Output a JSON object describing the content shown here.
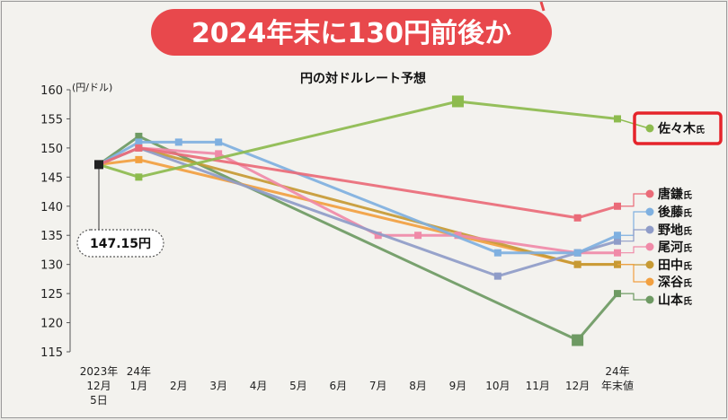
{
  "banner": {
    "text": "2024年末に130円前後か"
  },
  "chart_data": {
    "type": "line",
    "title": "円の対ドルレート予想",
    "ylabel": "(円/ドル)",
    "ylim": [
      115,
      160
    ],
    "yticks": [
      115,
      120,
      125,
      130,
      135,
      140,
      145,
      150,
      155,
      160
    ],
    "categories": [
      [
        "2023年",
        "12月",
        "5日"
      ],
      [
        "24年",
        "1月"
      ],
      [
        "2月"
      ],
      [
        "3月"
      ],
      [
        "4月"
      ],
      [
        "5月"
      ],
      [
        "6月"
      ],
      [
        "7月"
      ],
      [
        "8月"
      ],
      [
        "9月"
      ],
      [
        "10月"
      ],
      [
        "11月"
      ],
      [
        "12月"
      ],
      [
        "24年",
        "年末値"
      ]
    ],
    "start_value": 147.15,
    "start_label": "147.15円",
    "grid": false,
    "legend_position": "right",
    "series": [
      {
        "name": "佐々木",
        "suffix": "氏",
        "color": "#8dbb4e",
        "highlight": true,
        "points": [
          [
            0,
            147.15
          ],
          [
            1,
            145
          ],
          [
            9,
            158
          ],
          [
            13,
            155
          ]
        ]
      },
      {
        "name": "唐鎌",
        "suffix": "氏",
        "color": "#ea6b78",
        "points": [
          [
            0,
            147.15
          ],
          [
            1,
            150
          ],
          [
            12,
            138
          ],
          [
            13,
            140
          ]
        ]
      },
      {
        "name": "後藤",
        "suffix": "氏",
        "color": "#7fb0e0",
        "points": [
          [
            0,
            147.15
          ],
          [
            1,
            151
          ],
          [
            2,
            151
          ],
          [
            3,
            151
          ],
          [
            10,
            132
          ],
          [
            12,
            132
          ],
          [
            13,
            135
          ]
        ]
      },
      {
        "name": "野地",
        "suffix": "氏",
        "color": "#8f9cc8",
        "points": [
          [
            0,
            147.15
          ],
          [
            1,
            150
          ],
          [
            10,
            128
          ],
          [
            12,
            132
          ],
          [
            13,
            134
          ]
        ]
      },
      {
        "name": "尾河",
        "suffix": "氏",
        "color": "#f08aa8",
        "points": [
          [
            0,
            147.15
          ],
          [
            1,
            150
          ],
          [
            3,
            149
          ],
          [
            7,
            135
          ],
          [
            8,
            135
          ],
          [
            9,
            135
          ],
          [
            12,
            132
          ],
          [
            13,
            132
          ]
        ]
      },
      {
        "name": "田中",
        "suffix": "氏",
        "color": "#c79a34",
        "points": [
          [
            0,
            147.15
          ],
          [
            1,
            150
          ],
          [
            12,
            130
          ],
          [
            13,
            130
          ]
        ]
      },
      {
        "name": "深谷",
        "suffix": "氏",
        "color": "#f2a040",
        "points": [
          [
            0,
            147.15
          ],
          [
            1,
            148
          ],
          [
            12,
            130
          ],
          [
            13,
            130
          ]
        ]
      },
      {
        "name": "山本",
        "suffix": "氏",
        "color": "#6e9a63",
        "points": [
          [
            0,
            147.15
          ],
          [
            1,
            152
          ],
          [
            12,
            117
          ],
          [
            13,
            125
          ]
        ]
      }
    ]
  }
}
